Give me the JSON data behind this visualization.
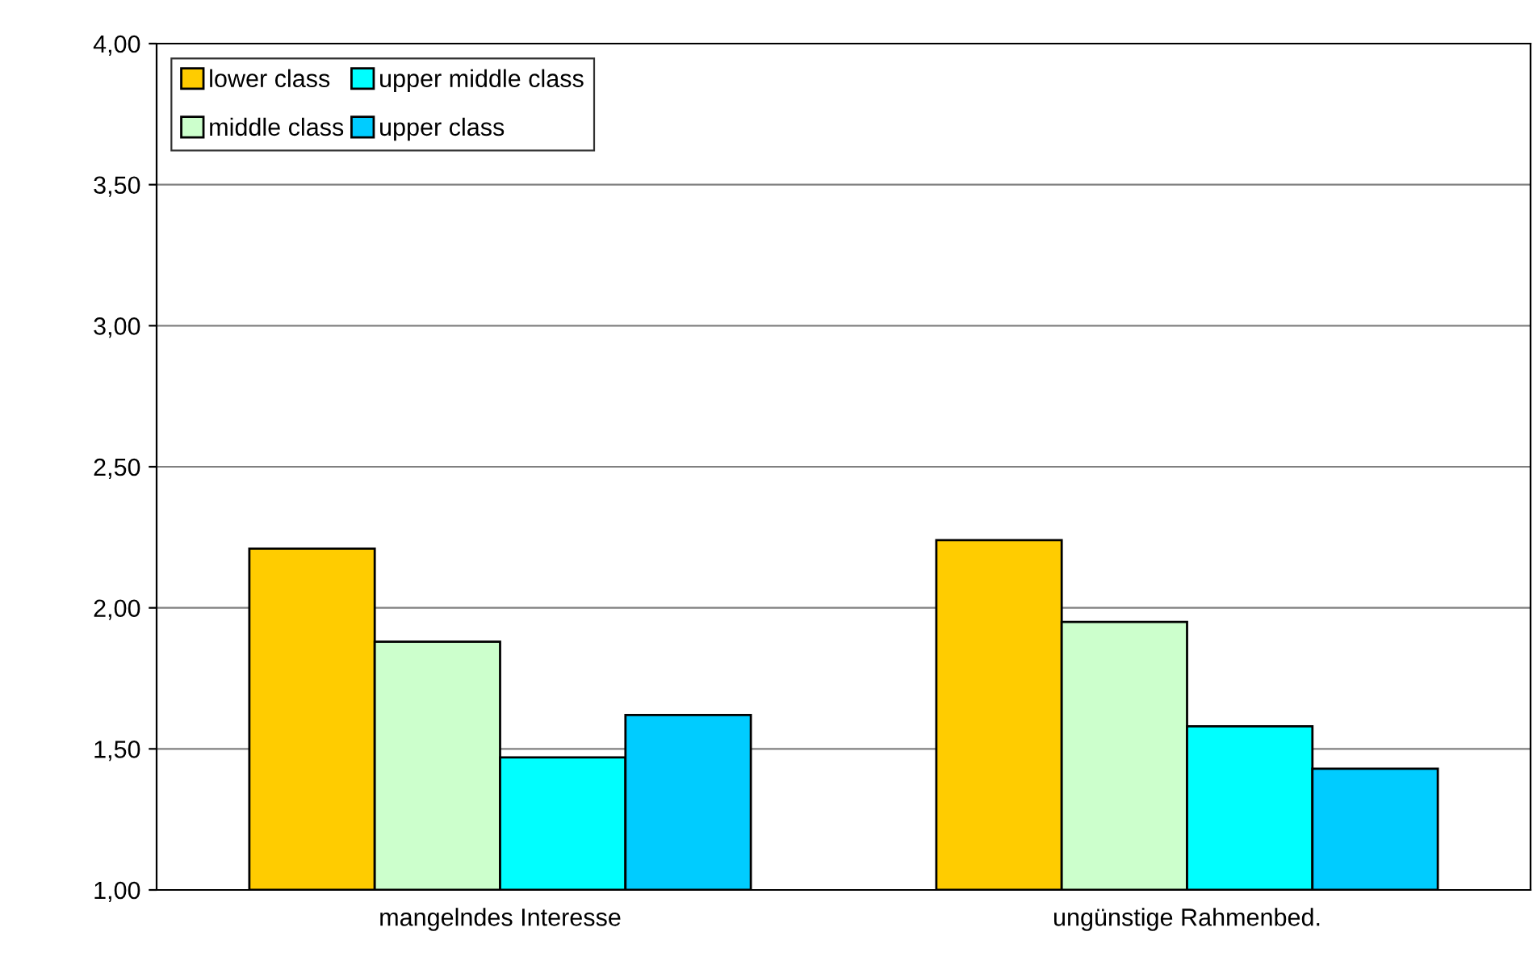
{
  "chart_data": {
    "type": "bar",
    "categories": [
      "mangelndes Interesse",
      "ungünstige Rahmenbed."
    ],
    "series": [
      {
        "name": "lower class",
        "color": "#ffcc00",
        "values": [
          2.21,
          2.24
        ]
      },
      {
        "name": "middle class",
        "color": "#ccffcc",
        "values": [
          1.88,
          1.95
        ]
      },
      {
        "name": "upper middle class",
        "color": "#00ffff",
        "values": [
          1.47,
          1.58
        ]
      },
      {
        "name": "upper class",
        "color": "#00ccff",
        "values": [
          1.62,
          1.43
        ]
      }
    ],
    "ylim": [
      1,
      4
    ],
    "yticks": [
      {
        "value": 1,
        "label": "1,00"
      },
      {
        "value": 1.5,
        "label": "1,50"
      },
      {
        "value": 2,
        "label": "2,00"
      },
      {
        "value": 2.5,
        "label": "2,50"
      },
      {
        "value": 3,
        "label": "3,00"
      },
      {
        "value": 3.5,
        "label": "3,50"
      },
      {
        "value": 4,
        "label": "4,00"
      }
    ],
    "grid": "y",
    "legend": "top left"
  }
}
